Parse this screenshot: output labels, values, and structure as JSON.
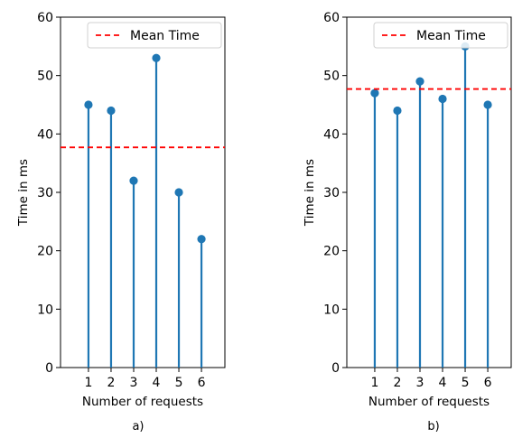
{
  "chart_data": [
    {
      "type": "stem",
      "caption": "a)",
      "xlabel": "Number of requests",
      "ylabel": "Time in ms",
      "categories": [
        "1",
        "2",
        "3",
        "4",
        "5",
        "6"
      ],
      "values": [
        45,
        44,
        32,
        53,
        30,
        22
      ],
      "mean_line": 37.7,
      "ylim": [
        0,
        60
      ],
      "yticks": [
        "0",
        "10",
        "20",
        "30",
        "40",
        "50",
        "60"
      ],
      "legend": {
        "label": "Mean Time",
        "position": "top-right"
      },
      "grid": false,
      "colors": {
        "stem": "#1f77b4",
        "mean": "#ff0000"
      }
    },
    {
      "type": "stem",
      "caption": "b)",
      "xlabel": "Number of requests",
      "ylabel": "Time in ms",
      "categories": [
        "1",
        "2",
        "3",
        "4",
        "5",
        "6"
      ],
      "values": [
        47,
        44,
        49,
        46,
        55,
        45
      ],
      "mean_line": 47.7,
      "ylim": [
        0,
        60
      ],
      "yticks": [
        "0",
        "10",
        "20",
        "30",
        "40",
        "50",
        "60"
      ],
      "legend": {
        "label": "Mean Time",
        "position": "top-right"
      },
      "grid": false,
      "colors": {
        "stem": "#1f77b4",
        "mean": "#ff0000"
      }
    }
  ]
}
